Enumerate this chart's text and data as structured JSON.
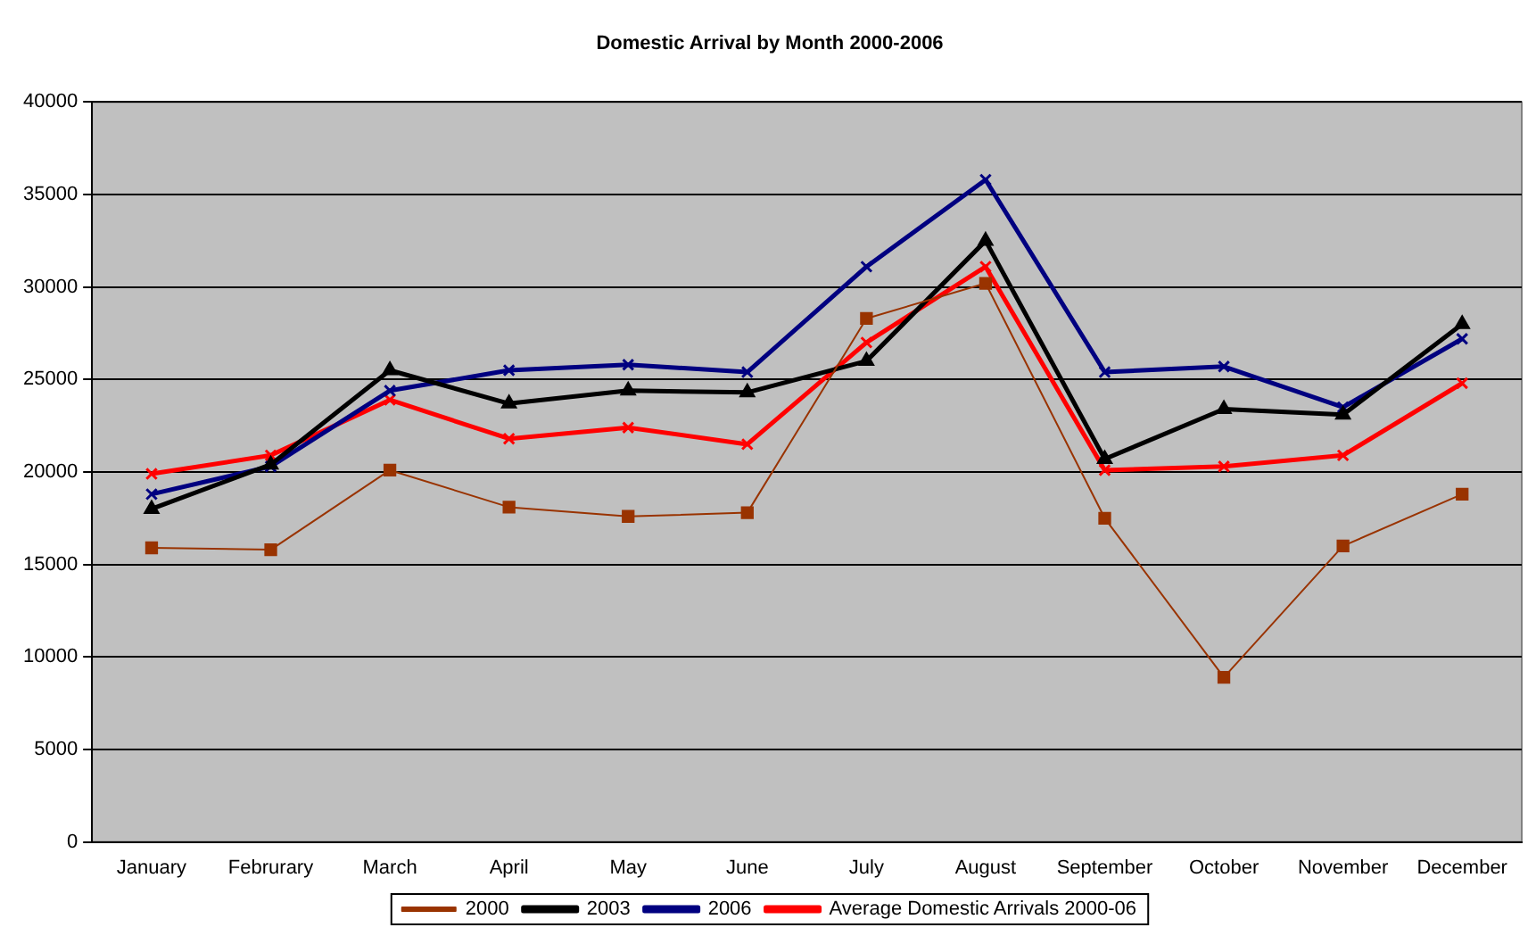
{
  "chart_data": {
    "type": "line",
    "title": "Domestic Arrival by Month 2000-2006",
    "categories": [
      "January",
      "Februrary",
      "March",
      "April",
      "May",
      "June",
      "July",
      "August",
      "September",
      "October",
      "November",
      "December"
    ],
    "series": [
      {
        "name": "2000",
        "color": "#993300",
        "marker": "square",
        "values": [
          15900,
          15800,
          20100,
          18100,
          17600,
          17800,
          28300,
          30200,
          17500,
          8900,
          16000,
          18800
        ]
      },
      {
        "name": "2003",
        "color": "#000000",
        "marker": "triangle",
        "values": [
          18000,
          20400,
          25500,
          23700,
          24400,
          24300,
          26000,
          32500,
          20700,
          23400,
          23100,
          28000
        ]
      },
      {
        "name": "2006",
        "color": "#000080",
        "marker": "cross",
        "values": [
          18800,
          20300,
          24400,
          25500,
          25800,
          25400,
          31100,
          35800,
          25400,
          25700,
          23500,
          27200
        ]
      },
      {
        "name": "Average Domestic Arrivals 2000-06",
        "color": "#ff0000",
        "marker": "cross",
        "values": [
          19900,
          20900,
          23900,
          21800,
          22400,
          21500,
          27000,
          31100,
          20100,
          20300,
          20900,
          24800
        ]
      }
    ],
    "ylim": [
      0,
      40000
    ],
    "yticks": [
      0,
      5000,
      10000,
      15000,
      20000,
      25000,
      30000,
      35000,
      40000
    ],
    "grid": "y",
    "legend": "bottom"
  }
}
